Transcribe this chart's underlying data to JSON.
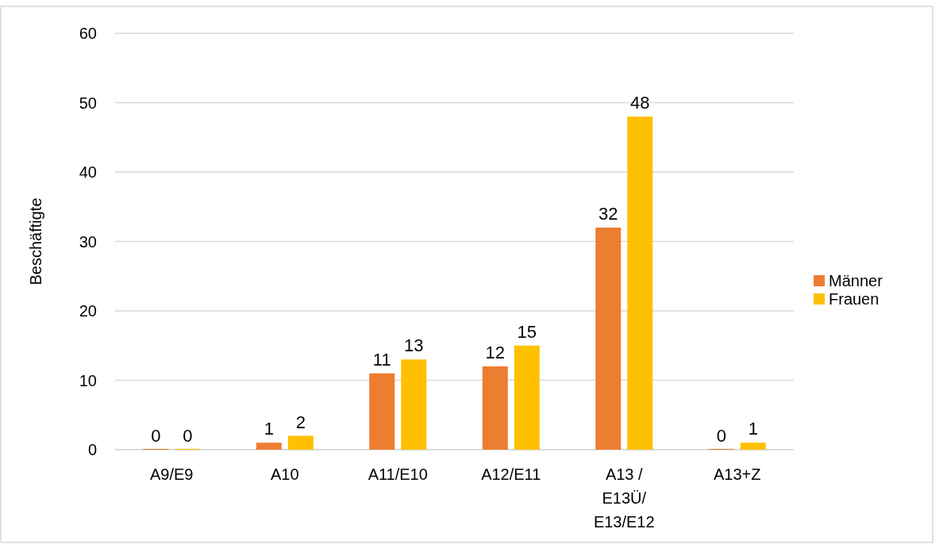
{
  "chart_data": {
    "type": "bar",
    "ylabel": "Beschäftigte",
    "categories": [
      "A9/E9",
      "A10",
      "A11/E10",
      "A12/E11",
      "A13 / E13Ü/ E13/E12",
      "A13+Z"
    ],
    "series": [
      {
        "name": "Männer",
        "color": "#ed7d31",
        "values": [
          0,
          1,
          11,
          12,
          32,
          0
        ]
      },
      {
        "name": "Frauen",
        "color": "#ffc000",
        "values": [
          0,
          2,
          13,
          15,
          48,
          1
        ]
      }
    ],
    "ylim": [
      0,
      60
    ],
    "yticks": [
      0,
      10,
      20,
      30,
      40,
      50,
      60
    ],
    "grid": "y",
    "legend": "right",
    "data_labels": true
  }
}
